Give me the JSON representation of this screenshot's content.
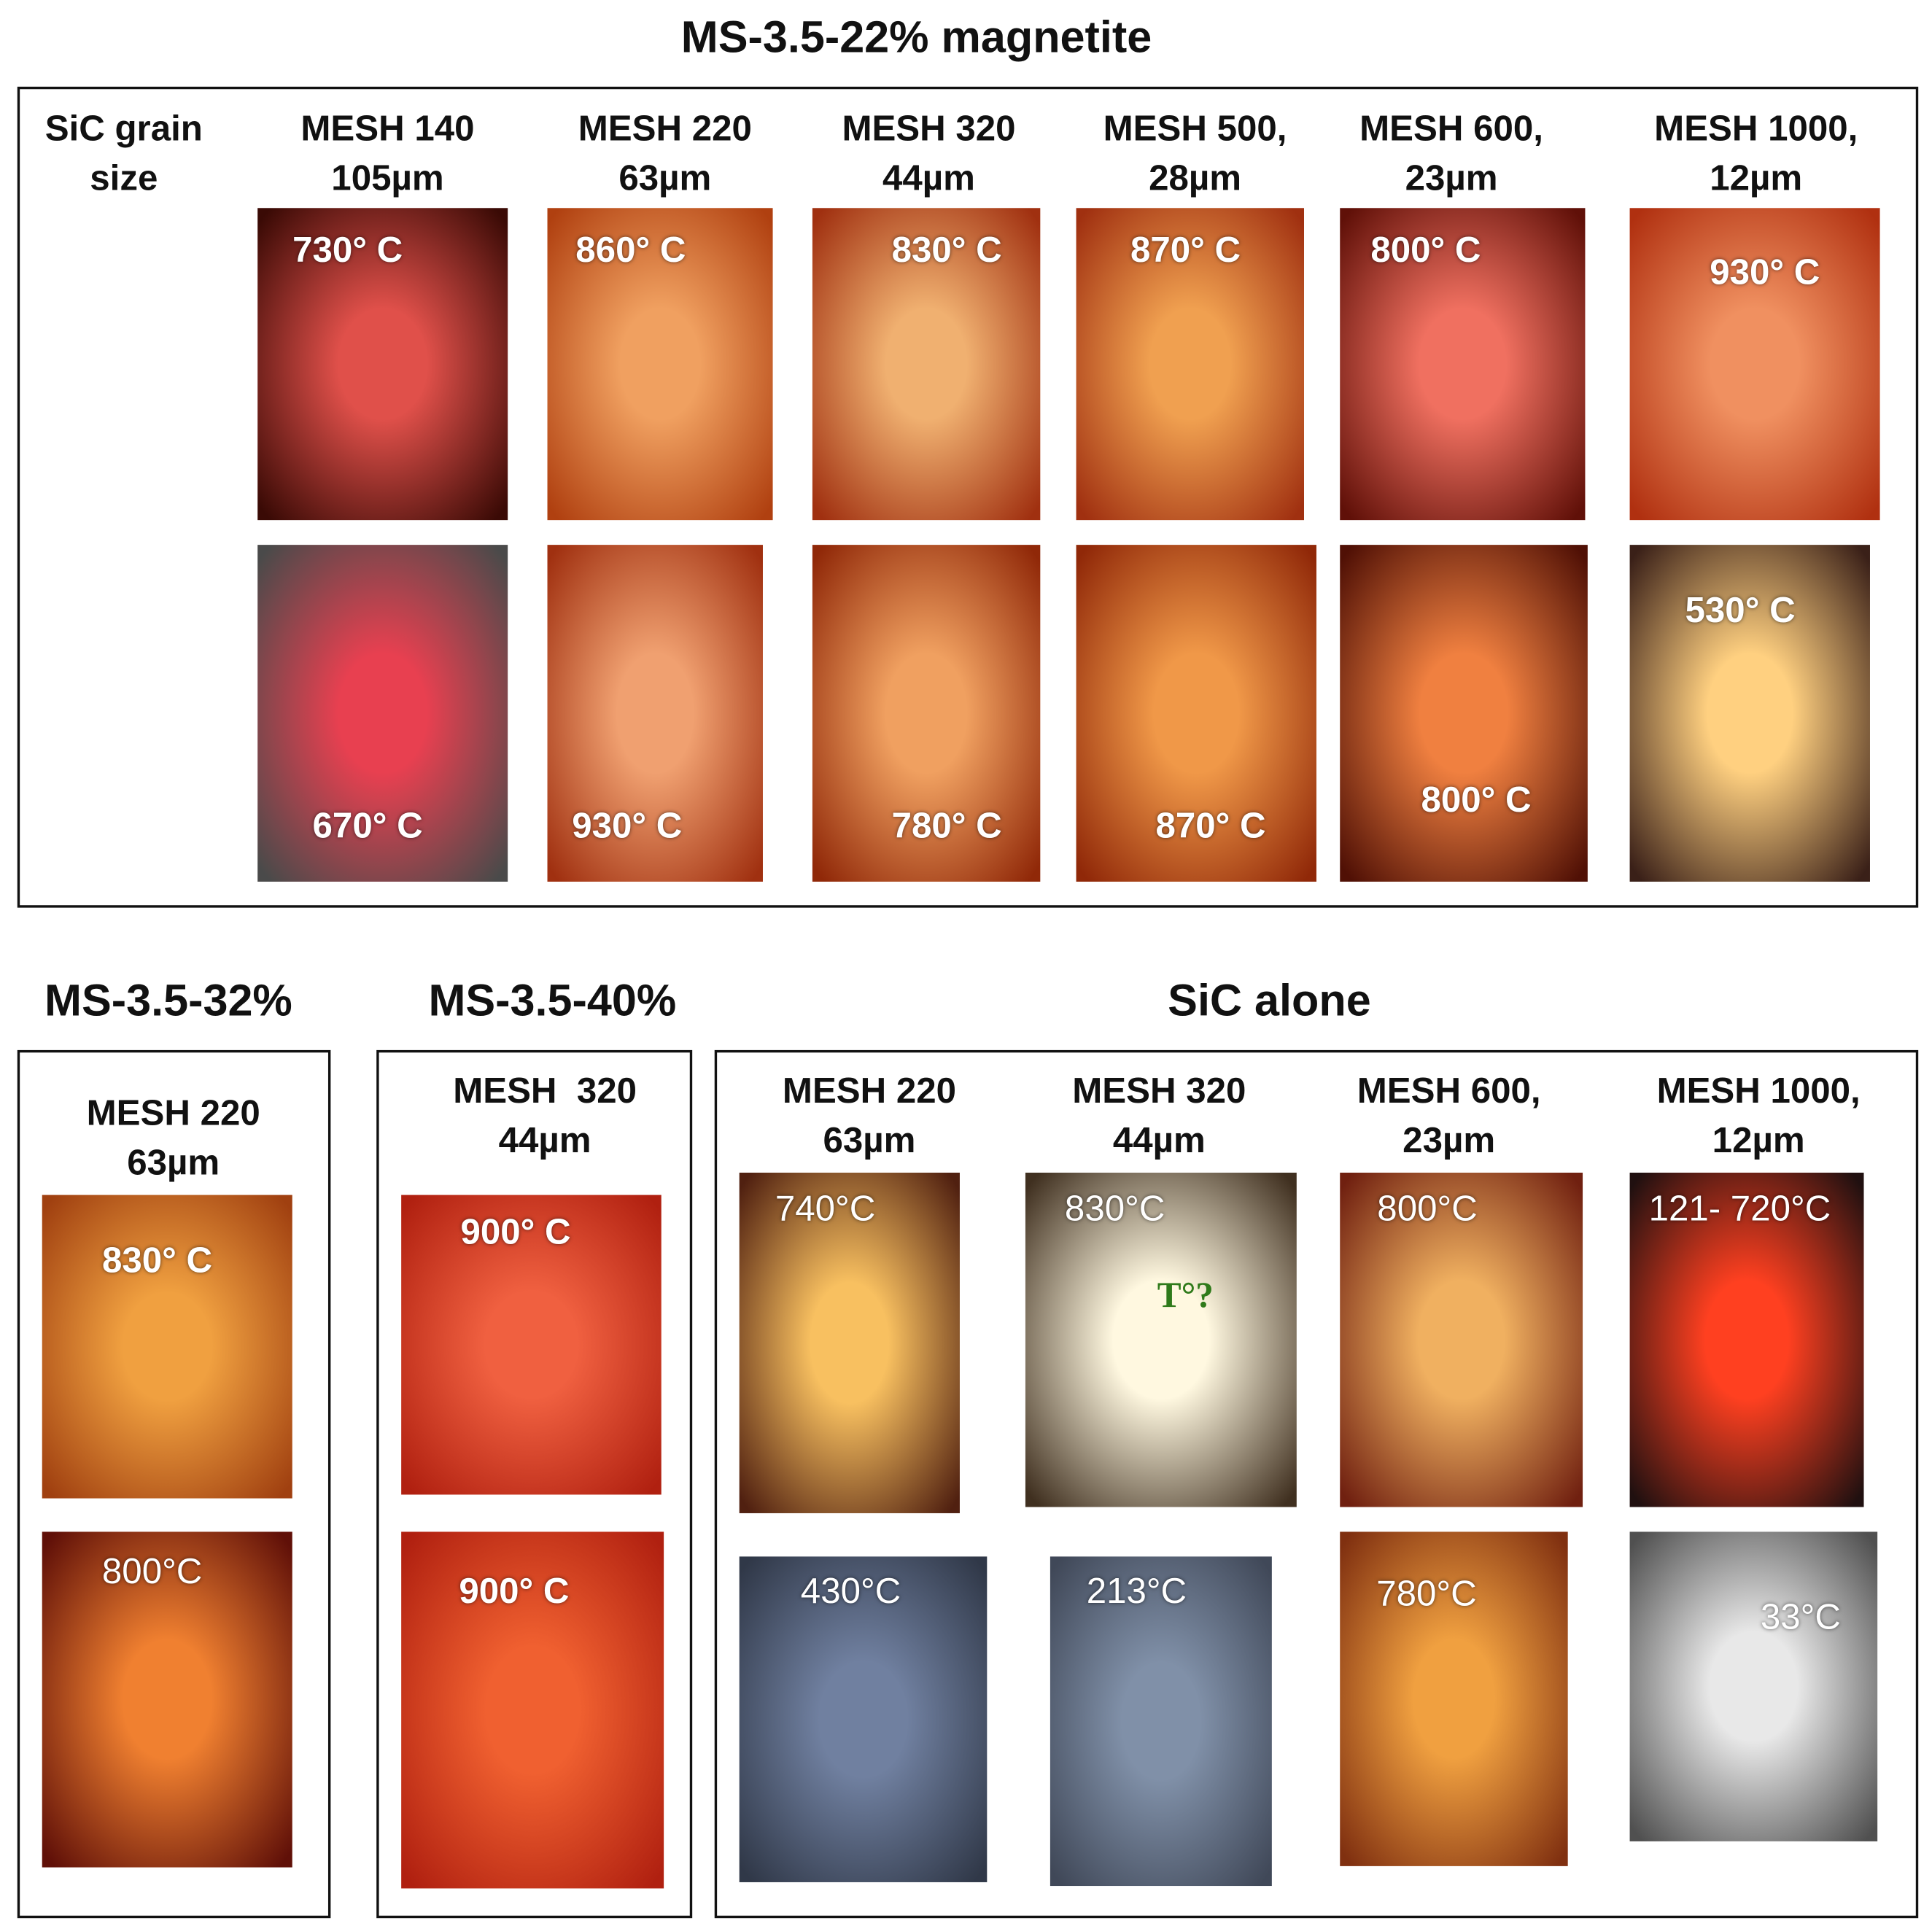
{
  "panels": [
    {
      "title": "MS-3.5-22% magnetite",
      "row_header": [
        "SiC grain",
        "size"
      ],
      "columns": [
        {
          "header": [
            "MESH 140",
            "105µm"
          ],
          "photos": [
            [
              "730° C"
            ],
            [
              "670° C"
            ]
          ]
        },
        {
          "header": [
            "MESH 220",
            "63µm"
          ],
          "photos": [
            [
              "860° C"
            ],
            [
              "930° C"
            ]
          ]
        },
        {
          "header": [
            "MESH 320",
            "44µm"
          ],
          "photos": [
            [
              "830° C"
            ],
            [
              "780° C"
            ]
          ]
        },
        {
          "header": [
            "MESH 500,",
            "28µm"
          ],
          "photos": [
            [
              "870° C"
            ],
            [
              "870° C"
            ]
          ]
        },
        {
          "header": [
            "MESH 600,",
            "23µm"
          ],
          "photos": [
            [
              "800° C"
            ],
            [
              "800° C"
            ]
          ]
        },
        {
          "header": [
            "MESH 1000,",
            "12µm"
          ],
          "photos": [
            [
              "930° C"
            ],
            [
              "530° C"
            ]
          ]
        }
      ]
    },
    {
      "title": "MS-3.5-32%",
      "columns": [
        {
          "header": [
            "MESH 220",
            "63µm"
          ],
          "photos": [
            [
              "830° C"
            ],
            [
              "800°C"
            ]
          ]
        }
      ]
    },
    {
      "title": "MS-3.5-40%",
      "columns": [
        {
          "header": [
            "MESH  320",
            "44µm"
          ],
          "photos": [
            [
              "900° C"
            ],
            [
              "900° C"
            ]
          ]
        }
      ]
    },
    {
      "title": "SiC alone",
      "columns": [
        {
          "header": [
            "MESH 220",
            "63µm"
          ],
          "photos": [
            [
              "740°C"
            ],
            [
              "430°C"
            ]
          ]
        },
        {
          "header": [
            "MESH 320",
            "44µm"
          ],
          "photos": [
            [
              "830°C",
              "T°?"
            ],
            [
              "213°C"
            ]
          ]
        },
        {
          "header": [
            "MESH 600,",
            "23µm"
          ],
          "photos": [
            [
              "800°C"
            ],
            [
              "780°C"
            ]
          ]
        },
        {
          "header": [
            "MESH 1000,",
            "12µm"
          ],
          "photos": [
            [
              "121- 720°C"
            ],
            [
              "33°C"
            ]
          ]
        }
      ]
    }
  ]
}
